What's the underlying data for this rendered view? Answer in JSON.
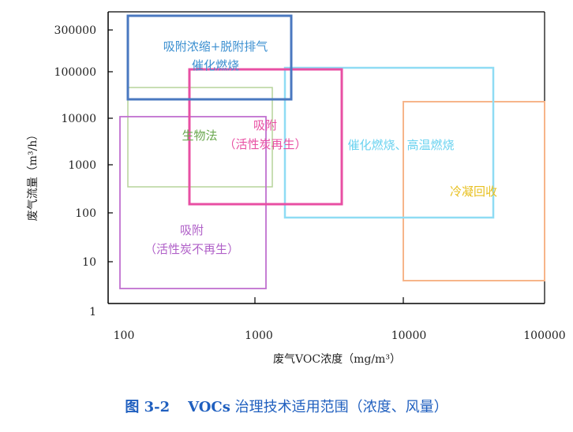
{
  "chart_data": {
    "type": "diagram",
    "x_scale": "log",
    "y_scale": "log",
    "xlabel": "废气VOC浓度（mg/m³）",
    "ylabel": "废气流量（m³/h）",
    "xlim": [
      100,
      100000
    ],
    "ylim": [
      1,
      300000
    ],
    "x_ticks": [
      {
        "value": 100,
        "label": "100"
      },
      {
        "value": 1000,
        "label": "1000"
      },
      {
        "value": 10000,
        "label": "10000"
      },
      {
        "value": 100000,
        "label": "100000"
      }
    ],
    "y_ticks": [
      {
        "value": 300000,
        "label": "300000"
      },
      {
        "value": 100000,
        "label": "100000"
      },
      {
        "value": 10000,
        "label": "10000"
      },
      {
        "value": 1000,
        "label": "1000"
      },
      {
        "value": 100,
        "label": "100"
      },
      {
        "value": 10,
        "label": "10"
      },
      {
        "value": 1,
        "label": "1"
      }
    ],
    "regions": [
      {
        "lines": [
          "吸附浓缩+脱附排气",
          "催化燃烧"
        ],
        "color": "#4a78c0",
        "text_color": "#3b8fd0",
        "x_range": [
          100,
          1700
        ],
        "y_range": [
          15000,
          350000
        ]
      },
      {
        "lines": [
          "生物法"
        ],
        "color": "#b5d49a",
        "text_color": "#6aa84f",
        "x_range": [
          100,
          1300
        ],
        "y_range": [
          1000,
          50000
        ]
      },
      {
        "lines": [
          "吸附",
          "（活性炭再生）"
        ],
        "color": "#e84fa3",
        "text_color": "#e84fa3",
        "x_range": [
          600,
          4000
        ],
        "y_range": [
          300,
          100000
        ]
      },
      {
        "lines": [
          "催化燃烧、高温燃烧"
        ],
        "color": "#8fdcf4",
        "text_color": "#6cd3f0",
        "x_range": [
          1600,
          45000
        ],
        "y_range": [
          150,
          100000
        ]
      },
      {
        "lines": [
          "冷凝回收"
        ],
        "color": "#f7b58a",
        "text_color": "#e8c020",
        "x_range": [
          10000,
          100000
        ],
        "y_range": [
          5,
          25000
        ]
      },
      {
        "lines": [
          "吸附",
          "（活性炭不再生）"
        ],
        "color": "#c070d0",
        "text_color": "#b060c8",
        "x_range": [
          100,
          1200
        ],
        "y_range": [
          2,
          10000
        ]
      }
    ]
  },
  "caption": {
    "figure_no": "图 3-2",
    "subject": "VOCs",
    "text": " 治理技术适用范围（浓度、风量）"
  }
}
